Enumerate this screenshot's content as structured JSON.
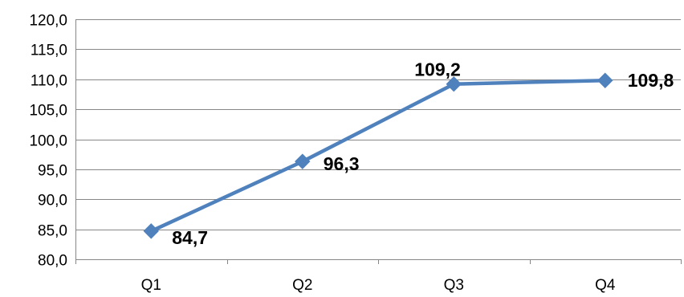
{
  "chart_data": {
    "type": "line",
    "categories": [
      "Q1",
      "Q2",
      "Q3",
      "Q4"
    ],
    "series": [
      {
        "values": [
          84.7,
          96.3,
          109.2,
          109.8
        ],
        "labels": [
          "84,7",
          "96,3",
          "109,2",
          "109,8"
        ],
        "color": "#4F81BD",
        "marker": "diamond"
      }
    ],
    "ylim": [
      80,
      120
    ],
    "y_ticks": [
      80,
      85,
      90,
      95,
      100,
      105,
      110,
      115,
      120
    ],
    "y_tick_labels": [
      "80,0",
      "85,0",
      "90,0",
      "95,0",
      "100,0",
      "105,0",
      "110,0",
      "115,0",
      "120,0"
    ],
    "grid": true,
    "grid_color": "#878787",
    "title": "",
    "xlabel": "",
    "ylabel": ""
  }
}
